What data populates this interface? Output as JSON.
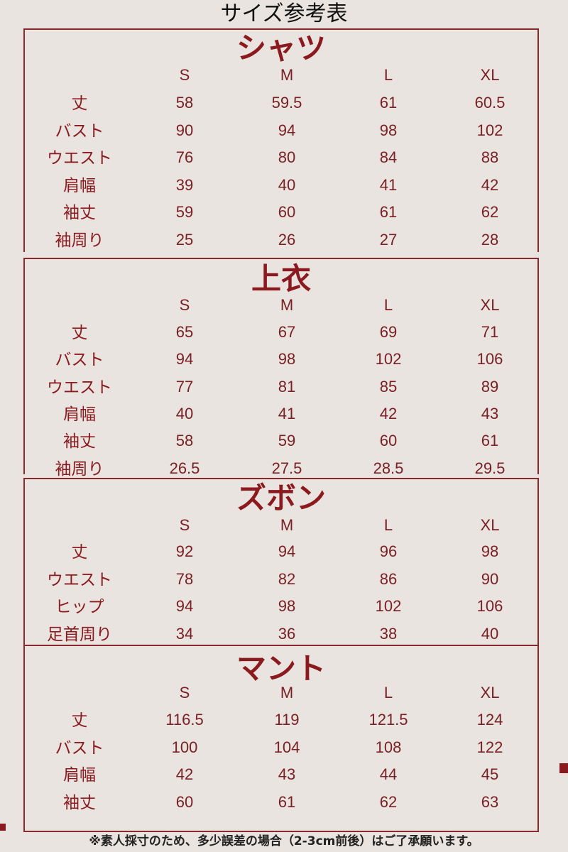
{
  "title": "サイズ参考表",
  "sizes": [
    "S",
    "M",
    "L",
    "XL"
  ],
  "sections": [
    {
      "title": "シャツ",
      "rows": [
        {
          "label": "丈",
          "values": [
            "58",
            "59.5",
            "61",
            "60.5"
          ]
        },
        {
          "label": "バスト",
          "values": [
            "90",
            "94",
            "98",
            "102"
          ]
        },
        {
          "label": "ウエスト",
          "values": [
            "76",
            "80",
            "84",
            "88"
          ]
        },
        {
          "label": "肩幅",
          "values": [
            "39",
            "40",
            "41",
            "42"
          ]
        },
        {
          "label": "袖丈",
          "values": [
            "59",
            "60",
            "61",
            "62"
          ]
        },
        {
          "label": "袖周り",
          "values": [
            "25",
            "26",
            "27",
            "28"
          ]
        }
      ]
    },
    {
      "title": "上衣",
      "rows": [
        {
          "label": "丈",
          "values": [
            "65",
            "67",
            "69",
            "71"
          ]
        },
        {
          "label": "バスト",
          "values": [
            "94",
            "98",
            "102",
            "106"
          ]
        },
        {
          "label": "ウエスト",
          "values": [
            "77",
            "81",
            "85",
            "89"
          ]
        },
        {
          "label": "肩幅",
          "values": [
            "40",
            "41",
            "42",
            "43"
          ]
        },
        {
          "label": "袖丈",
          "values": [
            "58",
            "59",
            "60",
            "61"
          ]
        },
        {
          "label": "袖周り",
          "values": [
            "26.5",
            "27.5",
            "28.5",
            "29.5"
          ]
        }
      ]
    },
    {
      "title": "ズボン",
      "rows": [
        {
          "label": "丈",
          "values": [
            "92",
            "94",
            "96",
            "98"
          ]
        },
        {
          "label": "ウエスト",
          "values": [
            "78",
            "82",
            "86",
            "90"
          ]
        },
        {
          "label": "ヒップ",
          "values": [
            "94",
            "98",
            "102",
            "106"
          ]
        },
        {
          "label": "足首周り",
          "values": [
            "34",
            "36",
            "38",
            "40"
          ]
        }
      ]
    },
    {
      "title": "マント",
      "rows": [
        {
          "label": "丈",
          "values": [
            "116.5",
            "119",
            "121.5",
            "124"
          ]
        },
        {
          "label": "バスト",
          "values": [
            "100",
            "104",
            "108",
            "122"
          ]
        },
        {
          "label": "肩幅",
          "values": [
            "42",
            "43",
            "44",
            "45"
          ]
        },
        {
          "label": "袖丈",
          "values": [
            "60",
            "61",
            "62",
            "63"
          ]
        }
      ]
    }
  ],
  "note": "※素人採寸のため、多少誤差の場合（2-3cm前後）はご了承願います。",
  "colors": {
    "accent": "#8b1a1f",
    "background": "#e9e4df"
  }
}
